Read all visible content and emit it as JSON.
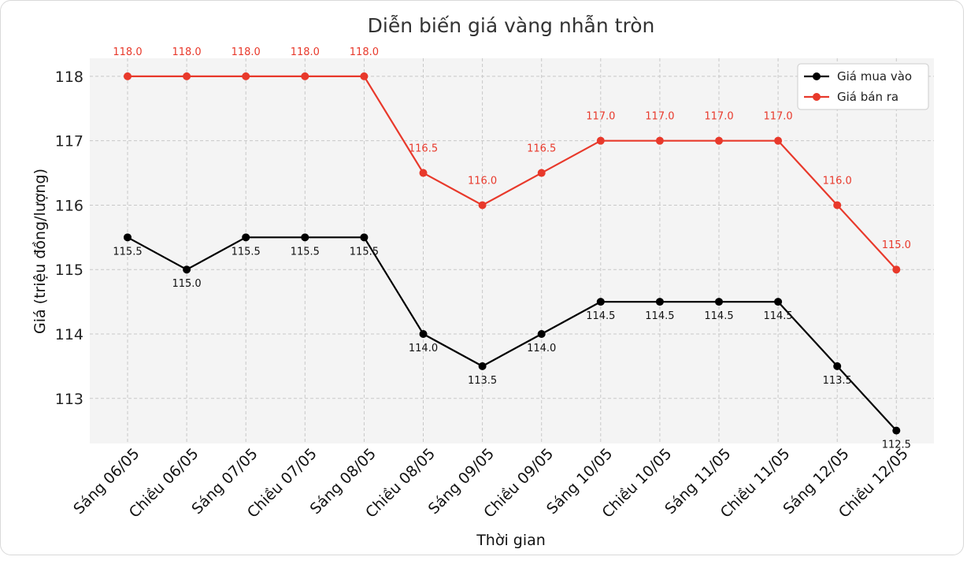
{
  "chart_data": {
    "type": "line",
    "title": "Diễn biến giá vàng nhẫn tròn",
    "xlabel": "Thời gian",
    "ylabel": "Giá (triệu đồng/lượng)",
    "categories": [
      "Sáng 06/05",
      "Chiều 06/05",
      "Sáng 07/05",
      "Chiều 07/05",
      "Sáng 08/05",
      "Chiều 08/05",
      "Sáng 09/05",
      "Chiều 09/05",
      "Sáng 10/05",
      "Chiều 10/05",
      "Sáng 11/05",
      "Chiều 11/05",
      "Sáng 12/05",
      "Chiều 12/05"
    ],
    "yticks": [
      "113",
      "114",
      "115",
      "116",
      "117",
      "118"
    ],
    "ylim": [
      112.3,
      118.28
    ],
    "grid": true,
    "legend_position": "top-right",
    "series": [
      {
        "name": "Giá mua vào",
        "color": "#000000",
        "values": [
          115.5,
          115.0,
          115.5,
          115.5,
          115.5,
          114.0,
          113.5,
          114.0,
          114.5,
          114.5,
          114.5,
          114.5,
          113.5,
          112.5
        ],
        "labels": [
          "115.5",
          "115.0",
          "115.5",
          "115.5",
          "115.5",
          "114.0",
          "113.5",
          "114.0",
          "114.5",
          "114.5",
          "114.5",
          "114.5",
          "113.5",
          "112.5"
        ]
      },
      {
        "name": "Giá bán ra",
        "color": "#e8392b",
        "values": [
          118.0,
          118.0,
          118.0,
          118.0,
          118.0,
          116.5,
          116.0,
          116.5,
          117.0,
          117.0,
          117.0,
          117.0,
          116.0,
          115.0
        ],
        "labels": [
          "118.0",
          "118.0",
          "118.0",
          "118.0",
          "118.0",
          "116.5",
          "116.0",
          "116.5",
          "117.0",
          "117.0",
          "117.0",
          "117.0",
          "116.0",
          "115.0"
        ]
      }
    ]
  }
}
